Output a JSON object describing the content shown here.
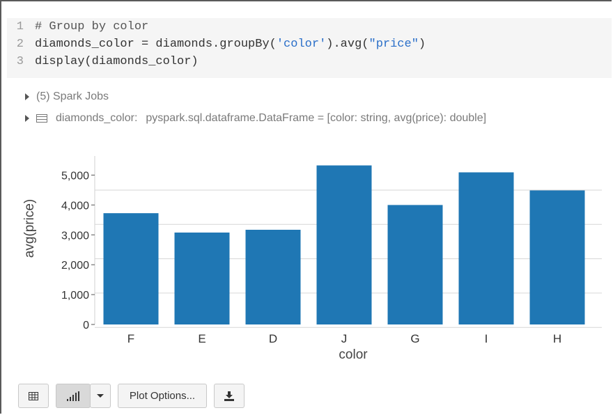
{
  "code": {
    "lines": [
      {
        "num": "1",
        "parts": [
          {
            "t": "# Group by color",
            "c": "cmt"
          }
        ]
      },
      {
        "num": "2",
        "parts": [
          {
            "t": "diamonds_color = diamonds.groupBy(",
            "c": ""
          },
          {
            "t": "'color'",
            "c": "str"
          },
          {
            "t": ").avg(",
            "c": ""
          },
          {
            "t": "\"price\"",
            "c": "str"
          },
          {
            "t": ")",
            "c": ""
          }
        ]
      },
      {
        "num": "3",
        "parts": [
          {
            "t": "display(diamonds_color)",
            "c": ""
          }
        ]
      }
    ]
  },
  "output": {
    "spark_jobs": "(5) Spark Jobs",
    "df_name": "diamonds_color:",
    "df_type": "pyspark.sql.dataframe.DataFrame = [color: string, avg(price): double]"
  },
  "chart_data": {
    "type": "bar",
    "categories": [
      "F",
      "E",
      "D",
      "J",
      "G",
      "I",
      "H"
    ],
    "values": [
      3725,
      3077,
      3170,
      5324,
      3999,
      5092,
      4487
    ],
    "xlabel": "color",
    "ylabel": "avg(price)",
    "ylim": [
      0,
      5500
    ],
    "yticks": [
      0,
      1000,
      2000,
      3000,
      4000,
      5000
    ],
    "ytick_labels": [
      "0",
      "1,000",
      "2,000",
      "3,000",
      "4,000",
      "5,000"
    ],
    "grid": true,
    "bar_color": "#1f77b4"
  },
  "toolbar": {
    "table_icon": "table-icon",
    "chart_icon": "bar-chart-icon",
    "dropdown_icon": "caret-down-icon",
    "plot_options_label": "Plot Options...",
    "download_icon": "download-icon"
  }
}
